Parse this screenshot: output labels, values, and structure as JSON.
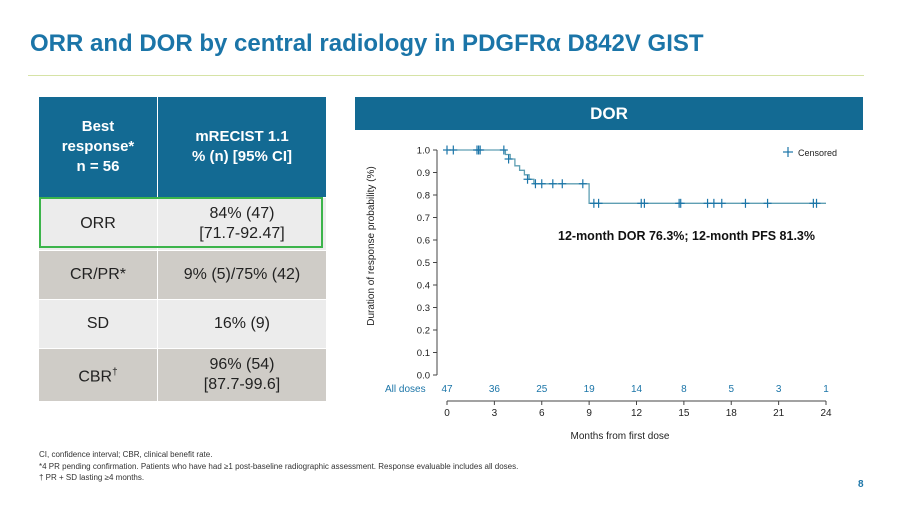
{
  "title": "ORR and DOR by central radiology in PDGFRα D842V GIST",
  "table": {
    "header_col1": "Best response* n = 56",
    "header_col1_lines": [
      "Best",
      "response*",
      "n = 56"
    ],
    "header_col2_lines": [
      "mRECIST 1.1",
      "% (n) [95% CI]"
    ],
    "rows": [
      {
        "label": "ORR",
        "value_lines": [
          "84% (47)",
          "[71.7-92.47]"
        ],
        "highlighted": true
      },
      {
        "label": "CR/PR*",
        "value_lines": [
          "9% (5)/75% (42)"
        ]
      },
      {
        "label": "SD",
        "value_lines": [
          "16% (9)"
        ]
      },
      {
        "label": "CBR†",
        "label_main": "CBR",
        "label_sup": "†",
        "value_lines": [
          "96% (54)",
          "[87.7-99.6]"
        ]
      }
    ]
  },
  "chart_data": {
    "type": "line",
    "panel_title": "DOR",
    "xlabel": "Months from first dose",
    "ylabel": "Duration of response probability (%)",
    "xlim": [
      0,
      24
    ],
    "ylim": [
      0,
      1.0
    ],
    "x_ticks": [
      0,
      3,
      6,
      9,
      12,
      15,
      18,
      21,
      24
    ],
    "y_ticks": [
      "0.0",
      "0.1",
      "0.2",
      "0.3",
      "0.4",
      "0.5",
      "0.6",
      "0.7",
      "0.8",
      "0.9",
      "1.0"
    ],
    "grid": false,
    "series": [
      {
        "steps": [
          [
            0,
            1.0
          ],
          [
            3.7,
            1.0
          ],
          [
            3.7,
            0.98
          ],
          [
            4.0,
            0.98
          ],
          [
            4.0,
            0.96
          ],
          [
            4.3,
            0.96
          ],
          [
            4.3,
            0.93
          ],
          [
            4.6,
            0.93
          ],
          [
            4.6,
            0.91
          ],
          [
            4.9,
            0.91
          ],
          [
            4.9,
            0.89
          ],
          [
            5.2,
            0.89
          ],
          [
            5.2,
            0.87
          ],
          [
            5.5,
            0.87
          ],
          [
            5.5,
            0.85
          ],
          [
            9.0,
            0.85
          ],
          [
            9.0,
            0.763
          ],
          [
            24.0,
            0.763
          ]
        ],
        "censored": [
          [
            0.0,
            1.0
          ],
          [
            0.4,
            1.0
          ],
          [
            1.9,
            1.0
          ],
          [
            2.0,
            1.0
          ],
          [
            2.1,
            1.0
          ],
          [
            3.6,
            1.0
          ],
          [
            3.9,
            0.96
          ],
          [
            5.1,
            0.87
          ],
          [
            5.6,
            0.85
          ],
          [
            6.0,
            0.85
          ],
          [
            6.7,
            0.85
          ],
          [
            7.3,
            0.85
          ],
          [
            8.6,
            0.85
          ],
          [
            9.3,
            0.763
          ],
          [
            9.6,
            0.763
          ],
          [
            12.3,
            0.763
          ],
          [
            12.5,
            0.763
          ],
          [
            14.7,
            0.763
          ],
          [
            14.8,
            0.763
          ],
          [
            16.5,
            0.763
          ],
          [
            16.9,
            0.763
          ],
          [
            17.4,
            0.763
          ],
          [
            18.9,
            0.763
          ],
          [
            20.3,
            0.763
          ],
          [
            23.2,
            0.763
          ],
          [
            23.4,
            0.763
          ]
        ]
      }
    ],
    "legend": {
      "label": "Censored",
      "placement": "top-right"
    },
    "annotation": "12-month DOR 76.3%; 12-month PFS 81.3%",
    "at_risk": {
      "label": "All doses",
      "times": [
        0,
        3,
        6,
        9,
        12,
        15,
        18,
        21,
        24
      ],
      "counts": [
        "47",
        "36",
        "25",
        "19",
        "14",
        "8",
        "5",
        "3",
        "1"
      ]
    },
    "colors": {
      "line": "#5f9fb3",
      "censor": "#1b75a8",
      "at_risk": "#1b75a8"
    }
  },
  "footnotes": [
    "CI, confidence interval; CBR, clinical benefit rate.",
    "*4 PR pending confirmation. Patients who have had ≥1 post-baseline radiographic assessment. Response evaluable includes all doses.",
    "† PR + SD lasting  ≥4 months."
  ],
  "page_number": "8"
}
